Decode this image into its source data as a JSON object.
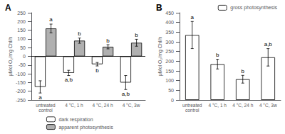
{
  "chart_data": [
    {
      "type": "bar",
      "title": "A",
      "categories": [
        "untreated\ncontrol",
        "4 °C, 1 h",
        "4 °C, 24 h",
        "4 °C, 3w"
      ],
      "series": [
        {
          "name": "dark respiration",
          "color": "#ffffff",
          "values": [
            -175,
            -95,
            -45,
            -150
          ],
          "errors": [
            35,
            15,
            10,
            40
          ],
          "letters": [
            "a",
            "a,b",
            "b",
            "a,b"
          ]
        },
        {
          "name": "apparent photosynthesis",
          "color": "#b0b0b0",
          "values": [
            160,
            90,
            55,
            78
          ],
          "errors": [
            25,
            15,
            12,
            20
          ],
          "letters": [
            "a",
            "b",
            "b",
            "b"
          ]
        }
      ],
      "edge_color": "#000000",
      "ylabel": "μMol O₂/mg Chl/h",
      "ylim": [
        -250,
        250
      ],
      "yticks": [
        -250,
        -200,
        -150,
        -100,
        -50,
        0,
        50,
        100,
        150,
        200,
        250
      ],
      "grid": false,
      "legend": "bottom"
    },
    {
      "type": "bar",
      "title": "B",
      "categories": [
        "untreated\ncontrol",
        "4 °C, 1 h",
        "4 °C, 24 h",
        "4 °C, 3w"
      ],
      "series": [
        {
          "name": "gross photosynthesis",
          "color": "#ffffff",
          "values": [
            335,
            185,
            107,
            220
          ],
          "errors": [
            70,
            25,
            20,
            45
          ],
          "letters": [
            "a",
            "b",
            "b",
            "a,b"
          ]
        }
      ],
      "edge_color": "#000000",
      "ylabel": "μMol O₂/mg Chl/h",
      "ylim": [
        0,
        450
      ],
      "yticks": [
        0,
        50,
        100,
        150,
        200,
        250,
        300,
        350,
        400,
        450
      ],
      "grid": false,
      "legend": "top"
    }
  ]
}
